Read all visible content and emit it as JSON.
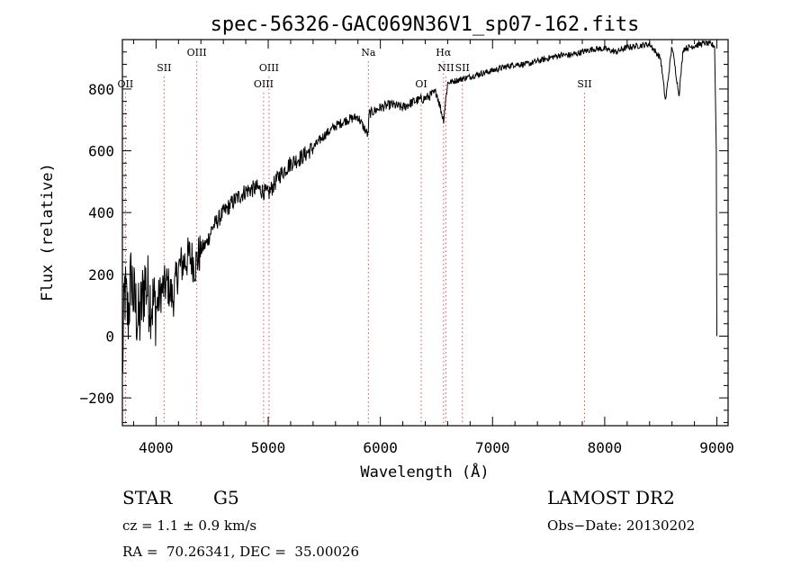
{
  "chart_data": {
    "type": "line",
    "title": "spec-56326-GAC069N36V1_sp07-162.fits",
    "xlabel": "Wavelength (Å)",
    "ylabel": "Flux (relative)",
    "xlim": [
      3700,
      9100
    ],
    "ylim": [
      -290,
      960
    ],
    "xticks": [
      4000,
      5000,
      6000,
      7000,
      8000,
      9000
    ],
    "yticks": [
      -200,
      0,
      200,
      400,
      600,
      800
    ],
    "xtick_labels": [
      "4000",
      "5000",
      "6000",
      "7000",
      "8000",
      "9000"
    ],
    "ytick_labels": [
      "−200",
      "0",
      "200",
      "400",
      "600",
      "800"
    ],
    "series": [
      {
        "name": "spectrum",
        "x": [
          3700,
          3720,
          3750,
          3780,
          3800,
          3850,
          3900,
          3950,
          4000,
          4050,
          4100,
          4150,
          4200,
          4250,
          4300,
          4350,
          4400,
          4450,
          4500,
          4600,
          4700,
          4800,
          4900,
          5000,
          5100,
          5200,
          5300,
          5400,
          5500,
          5600,
          5700,
          5800,
          5890,
          5900,
          6000,
          6100,
          6200,
          6300,
          6400,
          6500,
          6563,
          6600,
          6700,
          6800,
          6900,
          7000,
          7100,
          7200,
          7300,
          7400,
          7500,
          7600,
          7700,
          7800,
          7900,
          8000,
          8100,
          8200,
          8300,
          8400,
          8498,
          8542,
          8600,
          8662,
          8700,
          8800,
          8900,
          8980,
          8995,
          9000
        ],
        "y": [
          -120,
          150,
          60,
          200,
          120,
          40,
          180,
          120,
          90,
          150,
          170,
          120,
          220,
          240,
          260,
          230,
          280,
          300,
          350,
          400,
          440,
          470,
          480,
          460,
          520,
          560,
          580,
          610,
          650,
          680,
          700,
          710,
          650,
          720,
          740,
          750,
          740,
          760,
          770,
          790,
          700,
          820,
          830,
          840,
          850,
          860,
          870,
          880,
          880,
          890,
          900,
          910,
          910,
          920,
          930,
          930,
          920,
          935,
          940,
          945,
          900,
          760,
          940,
          780,
          930,
          940,
          950,
          940,
          600,
          0
        ]
      }
    ],
    "annotations": [
      {
        "label": "OII",
        "x": 3727,
        "row": "low"
      },
      {
        "label": "SII",
        "x": 4072,
        "row": "mid"
      },
      {
        "label": "OIII",
        "x": 4363,
        "row": "high"
      },
      {
        "label": "OIII",
        "x": 4959,
        "row": "low"
      },
      {
        "label": "OIII",
        "x": 5007,
        "row": "mid"
      },
      {
        "label": "Na",
        "x": 5893,
        "row": "high"
      },
      {
        "label": "OI",
        "x": 6364,
        "row": "low"
      },
      {
        "label": "Hα",
        "x": 6563,
        "row": "high"
      },
      {
        "label": "NII",
        "x": 6584,
        "row": "mid"
      },
      {
        "label": "SII",
        "x": 6731,
        "row": "mid"
      },
      {
        "label": "SII",
        "x": 7820,
        "row": "low"
      }
    ]
  },
  "info": {
    "object_class": "STAR",
    "subclass": "G5",
    "survey": "LAMOST DR2",
    "cz": "cz = 1.1 ± 0.9 km/s",
    "obs_date": "Obs−Date: 20130202",
    "coords": "RA =  70.26341, DEC =  35.00026"
  },
  "colors": {
    "line": "#000000",
    "marker_line": "#e05050",
    "background": "#ffffff"
  }
}
